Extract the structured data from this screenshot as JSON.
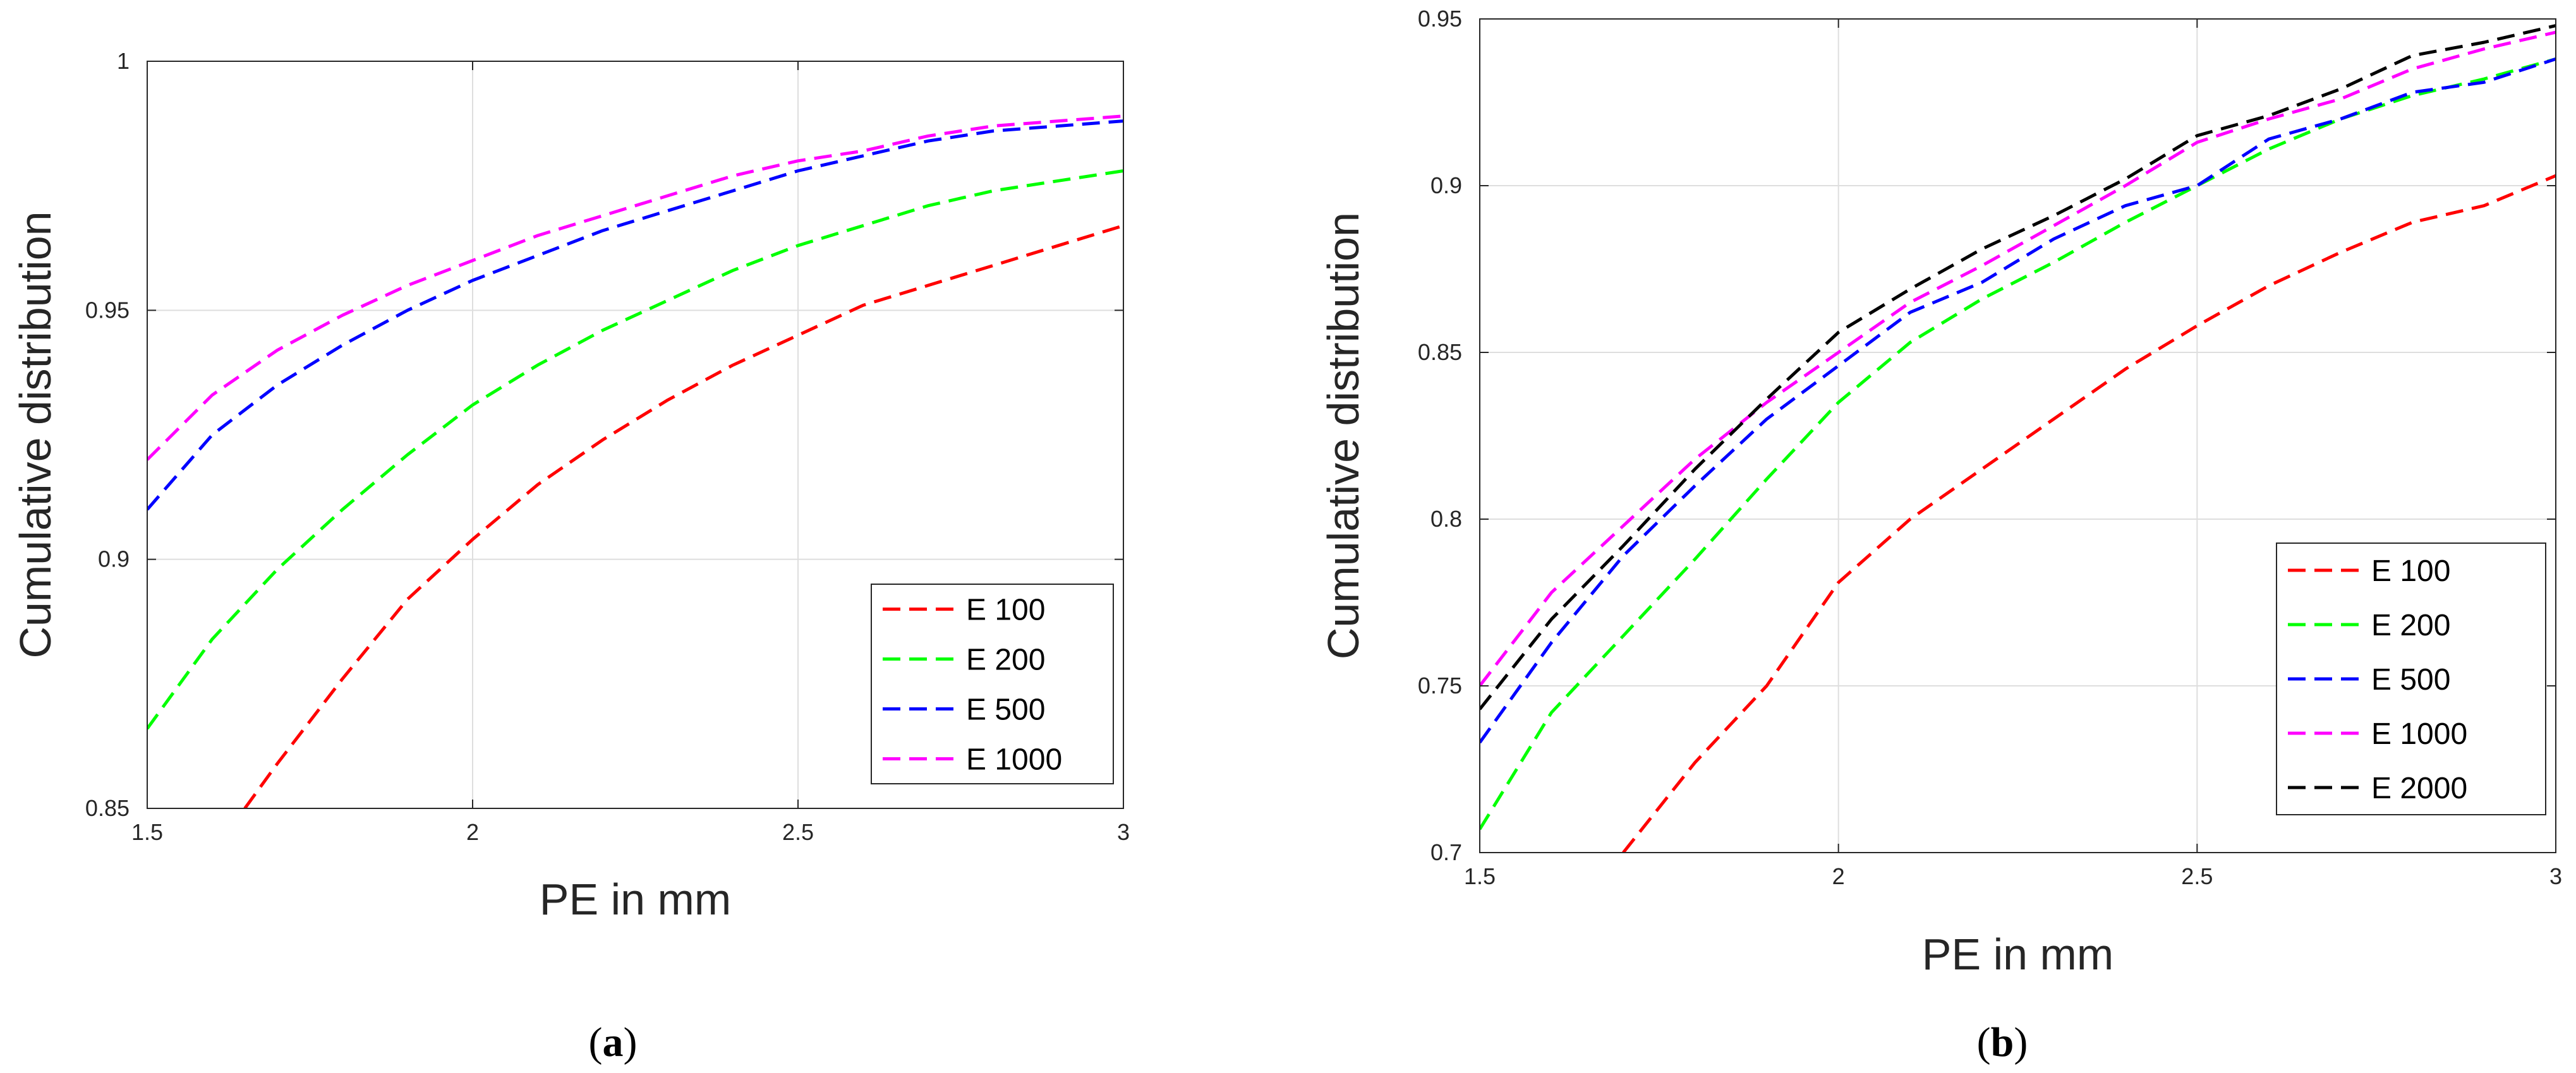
{
  "chart_data": [
    {
      "type": "line",
      "panel": "a",
      "caption": {
        "open": "(",
        "letter": "a",
        "close": ")"
      },
      "title": "",
      "xlabel": "PE in mm",
      "ylabel": "Cumulative distribution",
      "xlim": [
        1.5,
        3
      ],
      "ylim": [
        0.85,
        1
      ],
      "xticks": [
        1.5,
        2,
        2.5,
        3
      ],
      "xtick_labels": [
        "1.5",
        "2",
        "2.5",
        "3"
      ],
      "yticks": [
        0.85,
        0.9,
        0.95,
        1
      ],
      "ytick_labels": [
        "0.85",
        "0.9",
        "0.95",
        "1"
      ],
      "grid": true,
      "legend_position": "bottom-right",
      "line_style": "dashed",
      "series": [
        {
          "name": "E 100",
          "color": "#ff0000",
          "x": [
            1.65,
            1.7,
            1.8,
            1.9,
            2.0,
            2.1,
            2.2,
            2.3,
            2.4,
            2.5,
            2.6,
            2.7,
            2.8,
            2.9,
            3.0
          ],
          "y": [
            0.85,
            0.859,
            0.876,
            0.892,
            0.904,
            0.915,
            0.924,
            0.932,
            0.939,
            0.945,
            0.951,
            0.955,
            0.959,
            0.963,
            0.967
          ]
        },
        {
          "name": "E 200",
          "color": "#00ff00",
          "x": [
            1.5,
            1.6,
            1.7,
            1.8,
            1.9,
            2.0,
            2.1,
            2.2,
            2.3,
            2.4,
            2.5,
            2.6,
            2.7,
            2.8,
            2.9,
            3.0
          ],
          "y": [
            0.866,
            0.884,
            0.898,
            0.91,
            0.921,
            0.931,
            0.939,
            0.946,
            0.952,
            0.958,
            0.963,
            0.967,
            0.971,
            0.974,
            0.976,
            0.978
          ]
        },
        {
          "name": "E 500",
          "color": "#0000ff",
          "x": [
            1.5,
            1.6,
            1.7,
            1.8,
            1.9,
            2.0,
            2.1,
            2.2,
            2.3,
            2.4,
            2.5,
            2.6,
            2.7,
            2.8,
            2.9,
            3.0
          ],
          "y": [
            0.91,
            0.925,
            0.935,
            0.943,
            0.95,
            0.956,
            0.961,
            0.966,
            0.97,
            0.974,
            0.978,
            0.981,
            0.984,
            0.986,
            0.987,
            0.988
          ]
        },
        {
          "name": "E 1000",
          "color": "#ff00ff",
          "x": [
            1.5,
            1.6,
            1.7,
            1.8,
            1.9,
            2.0,
            2.1,
            2.2,
            2.3,
            2.4,
            2.5,
            2.6,
            2.7,
            2.8,
            2.9,
            3.0
          ],
          "y": [
            0.92,
            0.933,
            0.942,
            0.949,
            0.955,
            0.96,
            0.965,
            0.969,
            0.973,
            0.977,
            0.98,
            0.982,
            0.985,
            0.987,
            0.988,
            0.989
          ]
        }
      ]
    },
    {
      "type": "line",
      "panel": "b",
      "caption": {
        "open": "(",
        "letter": "b",
        "close": ")"
      },
      "title": "",
      "xlabel": "PE in mm",
      "ylabel": "Cumulative distribution",
      "xlim": [
        1.5,
        3
      ],
      "ylim": [
        0.7,
        0.95
      ],
      "xticks": [
        1.5,
        2,
        2.5,
        3
      ],
      "xtick_labels": [
        "1.5",
        "2",
        "2.5",
        "3"
      ],
      "yticks": [
        0.7,
        0.75,
        0.8,
        0.85,
        0.9,
        0.95
      ],
      "ytick_labels": [
        "0.7",
        "0.75",
        "0.8",
        "0.85",
        "0.9",
        "0.95"
      ],
      "grid": true,
      "legend_position": "bottom-right",
      "line_style": "dashed",
      "series": [
        {
          "name": "E 100",
          "color": "#ff0000",
          "x": [
            1.7,
            1.8,
            1.9,
            2.0,
            2.1,
            2.2,
            2.3,
            2.4,
            2.5,
            2.6,
            2.7,
            2.8,
            2.9,
            3.0
          ],
          "y": [
            0.7,
            0.727,
            0.75,
            0.781,
            0.8,
            0.815,
            0.83,
            0.845,
            0.858,
            0.87,
            0.88,
            0.889,
            0.894,
            0.903
          ]
        },
        {
          "name": "E 200",
          "color": "#00ff00",
          "x": [
            1.5,
            1.6,
            1.7,
            1.8,
            1.9,
            2.0,
            2.1,
            2.2,
            2.3,
            2.4,
            2.5,
            2.6,
            2.7,
            2.8,
            2.9,
            3.0
          ],
          "y": [
            0.707,
            0.742,
            0.765,
            0.788,
            0.812,
            0.835,
            0.853,
            0.866,
            0.877,
            0.889,
            0.9,
            0.911,
            0.92,
            0.927,
            0.932,
            0.938
          ]
        },
        {
          "name": "E 500",
          "color": "#0000ff",
          "x": [
            1.5,
            1.6,
            1.7,
            1.8,
            1.9,
            2.0,
            2.1,
            2.2,
            2.3,
            2.4,
            2.5,
            2.6,
            2.7,
            2.8,
            2.9,
            3.0
          ],
          "y": [
            0.733,
            0.763,
            0.789,
            0.81,
            0.83,
            0.846,
            0.862,
            0.871,
            0.884,
            0.894,
            0.9,
            0.914,
            0.92,
            0.928,
            0.931,
            0.938
          ]
        },
        {
          "name": "E 1000",
          "color": "#ff00ff",
          "x": [
            1.5,
            1.6,
            1.7,
            1.8,
            1.9,
            2.0,
            2.1,
            2.2,
            2.3,
            2.4,
            2.5,
            2.6,
            2.7,
            2.8,
            2.9,
            3.0
          ],
          "y": [
            0.75,
            0.778,
            0.798,
            0.818,
            0.835,
            0.85,
            0.865,
            0.876,
            0.888,
            0.9,
            0.913,
            0.92,
            0.926,
            0.935,
            0.941,
            0.946
          ]
        },
        {
          "name": "E 2000",
          "color": "#000000",
          "x": [
            1.5,
            1.6,
            1.7,
            1.8,
            1.9,
            2.0,
            2.1,
            2.2,
            2.3,
            2.4,
            2.5,
            2.6,
            2.7,
            2.8,
            2.9,
            3.0
          ],
          "y": [
            0.743,
            0.77,
            0.792,
            0.815,
            0.836,
            0.856,
            0.869,
            0.881,
            0.891,
            0.902,
            0.915,
            0.921,
            0.929,
            0.939,
            0.943,
            0.948
          ]
        }
      ]
    }
  ]
}
